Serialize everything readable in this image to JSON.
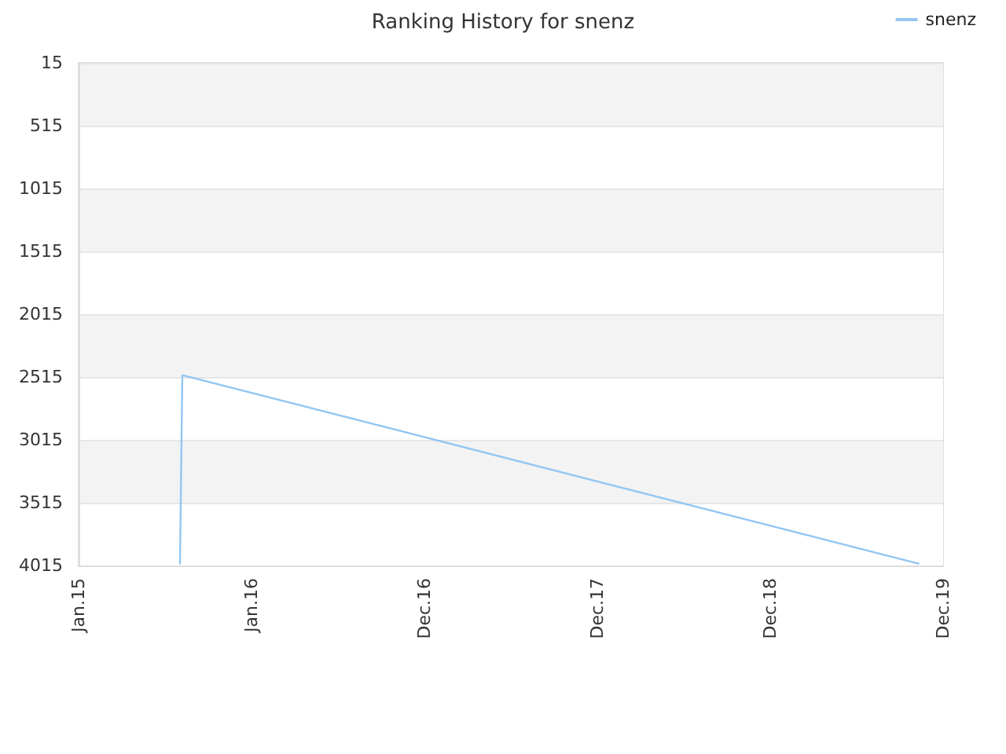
{
  "chart_data": {
    "type": "line",
    "title": "Ranking History for snenz",
    "x": [
      "2015-08-03",
      "2015-08-08",
      "2019-11-09"
    ],
    "series": [
      {
        "name": "snenz",
        "color": "#94c6f2",
        "values": [
          4000,
          2500,
          4000
        ]
      }
    ],
    "xlim": [
      "2015-01-01",
      "2019-12-31"
    ],
    "xticks": [
      {
        "value": "2015-01-01",
        "label": "Jan.15"
      },
      {
        "value": "2016-01-01",
        "label": "Jan.16"
      },
      {
        "value": "2016-12-31",
        "label": "Dec.16"
      },
      {
        "value": "2017-12-31",
        "label": "Dec.17"
      },
      {
        "value": "2018-12-31",
        "label": "Dec.18"
      },
      {
        "value": "2019-12-31",
        "label": "Dec.19"
      }
    ],
    "ylim": [
      4015,
      15
    ],
    "yticks": [
      15,
      515,
      1015,
      1515,
      2015,
      2515,
      3015,
      3515,
      4015
    ],
    "grid": "y",
    "legend": "top right",
    "marker": "none",
    "line_style": "solid"
  }
}
